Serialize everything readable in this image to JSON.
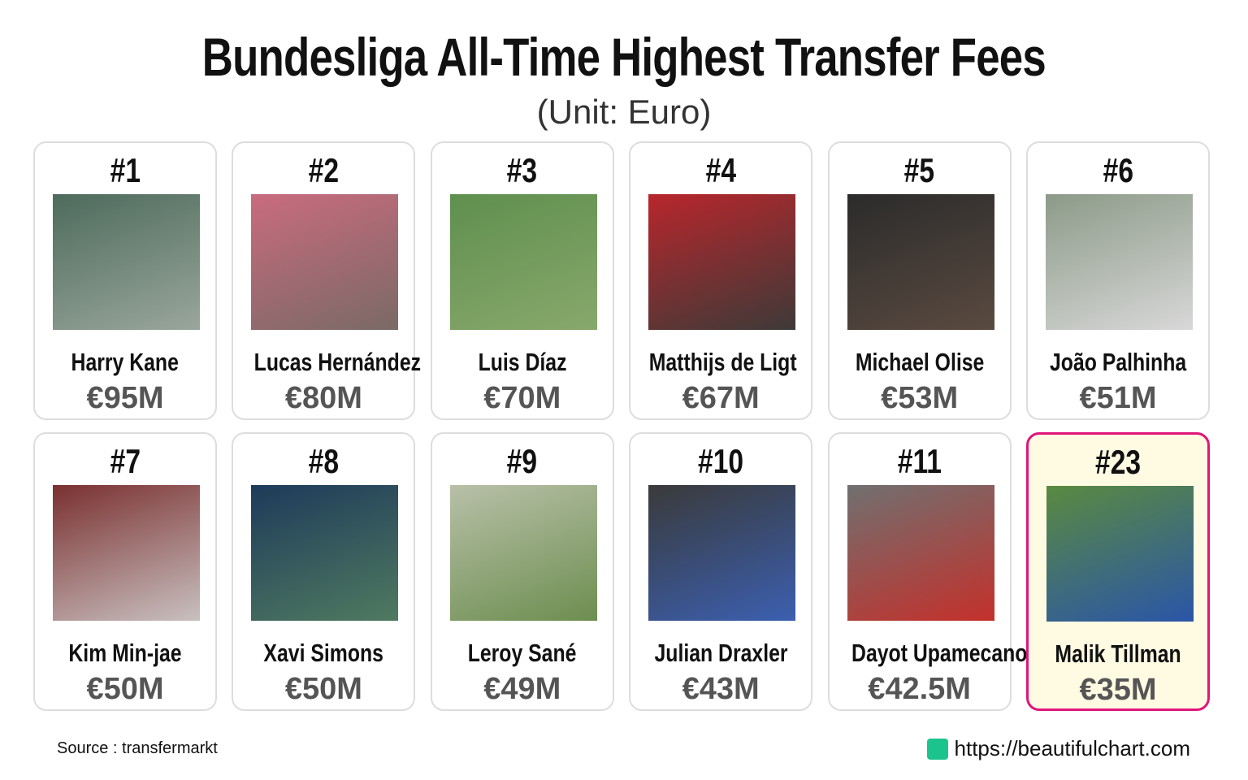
{
  "header": {
    "title": "Bundesliga All-Time Highest Transfer Fees",
    "subtitle": "(Unit: Euro)"
  },
  "cards": [
    {
      "rank": "#1",
      "name": "Harry Kane",
      "fee": "€95M"
    },
    {
      "rank": "#2",
      "name": "Lucas Hernández",
      "fee": "€80M"
    },
    {
      "rank": "#3",
      "name": "Luis Díaz",
      "fee": "€70M"
    },
    {
      "rank": "#4",
      "name": "Matthijs de Ligt",
      "fee": "€67M"
    },
    {
      "rank": "#5",
      "name": "Michael Olise",
      "fee": "€53M"
    },
    {
      "rank": "#6",
      "name": "João Palhinha",
      "fee": "€51M"
    },
    {
      "rank": "#7",
      "name": "Kim Min-jae",
      "fee": "€50M"
    },
    {
      "rank": "#8",
      "name": "Xavi Simons",
      "fee": "€50M"
    },
    {
      "rank": "#9",
      "name": "Leroy Sané",
      "fee": "€49M"
    },
    {
      "rank": "#10",
      "name": "Julian Draxler",
      "fee": "€43M"
    },
    {
      "rank": "#11",
      "name": "Dayot Upamecano",
      "fee": "€42.5M"
    },
    {
      "rank": "#23",
      "name": "Malik Tillman",
      "fee": "€35M",
      "highlighted": true
    }
  ],
  "footer": {
    "source": "Source : transfermarkt",
    "url": "https://beautifulchart.com"
  }
}
